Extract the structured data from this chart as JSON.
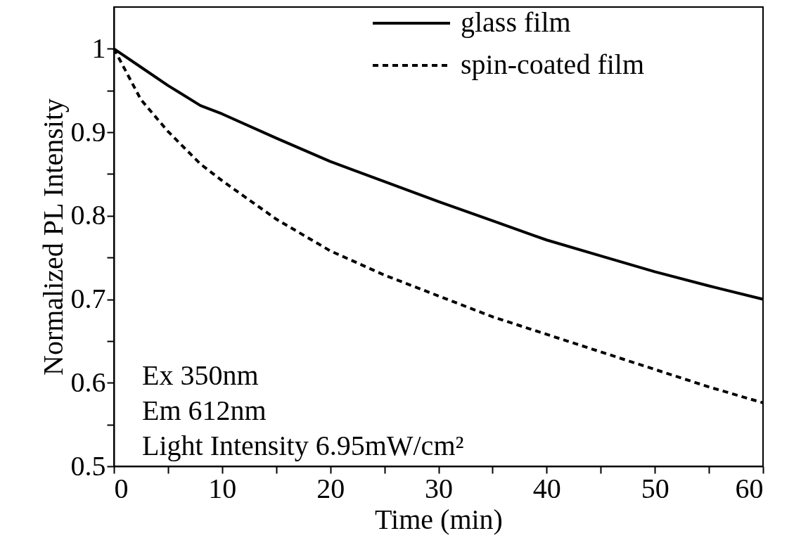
{
  "chart_data": {
    "type": "line",
    "xlabel": "Time (min)",
    "ylabel": "Normalized PL Intensity",
    "x": [
      0,
      2.5,
      5,
      8,
      10,
      15,
      20,
      25,
      30,
      35,
      40,
      45,
      50,
      55,
      60
    ],
    "series": [
      {
        "name": "glass film",
        "color": "#000000",
        "line_style": "solid",
        "values": [
          1.0,
          0.978,
          0.956,
          0.932,
          0.922,
          0.893,
          0.865,
          0.841,
          0.817,
          0.794,
          0.771,
          0.752,
          0.733,
          0.716,
          0.7
        ]
      },
      {
        "name": "spin-coated film",
        "color": "#000000",
        "line_style": "dashed",
        "values": [
          1.0,
          0.939,
          0.901,
          0.862,
          0.842,
          0.796,
          0.758,
          0.729,
          0.704,
          0.679,
          0.658,
          0.637,
          0.616,
          0.595,
          0.576
        ]
      }
    ],
    "xlim": [
      0,
      60
    ],
    "xticks": [
      0,
      {
        "value": 5,
        "label": null
      },
      10,
      {
        "value": 15,
        "label": null
      },
      20,
      {
        "value": 25,
        "label": null
      },
      30,
      {
        "value": 35,
        "label": null
      },
      40,
      {
        "value": 45,
        "label": null
      },
      50,
      {
        "value": 55,
        "label": null
      },
      60
    ],
    "ylim": [
      0.5,
      1.05
    ],
    "yticks": [
      0.5,
      {
        "value": 0.55,
        "label": null
      },
      0.6,
      {
        "value": 0.65,
        "label": null
      },
      0.7,
      {
        "value": 0.75,
        "label": null
      },
      0.8,
      {
        "value": 0.85,
        "label": null
      },
      0.9,
      {
        "value": 0.95,
        "label": null
      },
      1
    ],
    "annotations": [
      "Ex 350nm",
      "Em 612nm",
      "Light Intensity 6.95mW/cm²"
    ],
    "legend": "top right",
    "grid": false,
    "marker": "none"
  }
}
